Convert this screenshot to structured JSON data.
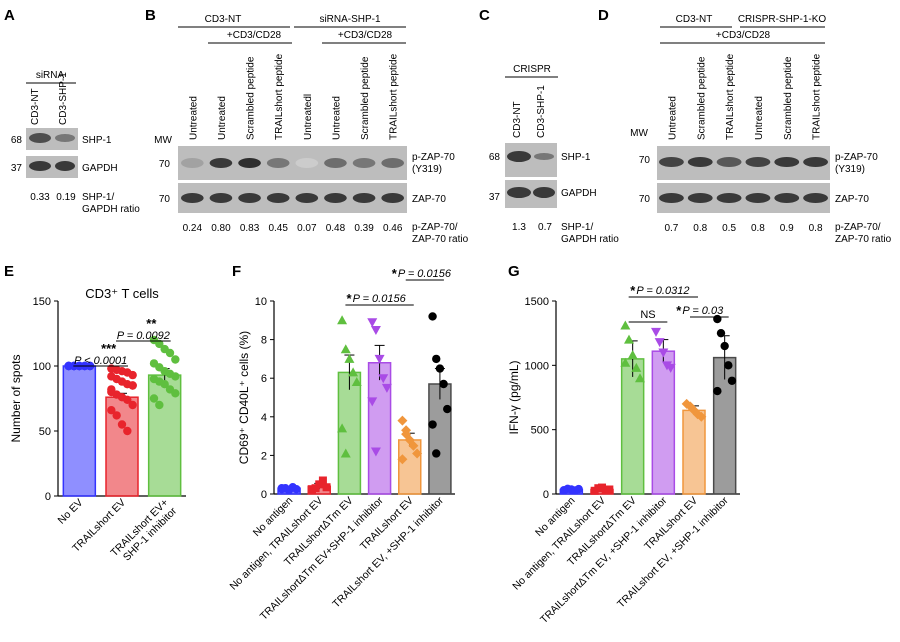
{
  "panels": {
    "A": {
      "letter": "A",
      "group_label": "siRNA",
      "lanes": [
        "CD3-NT",
        "CD3-SHP-1"
      ],
      "mw": [
        "68",
        "37"
      ],
      "bands": [
        "SHP-1",
        "GAPDH"
      ],
      "ratios": [
        "0.33",
        "0.19"
      ],
      "ratio_label": [
        "SHP-1/",
        "GAPDH ratio"
      ]
    },
    "B": {
      "letter": "B",
      "group1": "CD3-NT",
      "group2": "siRNA-SHP-1",
      "stim1": "+CD3/CD28",
      "stim2": "+CD3/CD28",
      "lanes": [
        "Untreated",
        "Untreated",
        "Scrambled peptide",
        "TRAILshort peptide",
        "Untreatedl",
        "Untreated",
        "Scrambled peptide",
        "TRAILshort peptide"
      ],
      "mw_title": "MW",
      "mw": [
        "70",
        "70"
      ],
      "bands": [
        "p-ZAP-70",
        "(Y319)",
        "ZAP-70"
      ],
      "ratios": [
        "0.24",
        "0.80",
        "0.83",
        "0.45",
        "0.07",
        "0.48",
        "0.39",
        "0.46"
      ],
      "ratio_label": [
        "p-ZAP-70/",
        "ZAP-70 ratio"
      ]
    },
    "C": {
      "letter": "C",
      "group_label": "CRISPR",
      "lanes": [
        "CD3-NT",
        "CD3-SHP-1"
      ],
      "mw": [
        "68",
        "37"
      ],
      "bands": [
        "SHP-1",
        "GAPDH"
      ],
      "ratios": [
        "1.3",
        "0.7"
      ],
      "ratio_label": [
        "SHP-1/",
        "GAPDH ratio"
      ]
    },
    "D": {
      "letter": "D",
      "group1": "CD3-NT",
      "group2": "CRISPR-SHP-1-KO",
      "stim": "+CD3/CD28",
      "lanes": [
        "Untreated",
        "Scrambled peptide",
        "TRAILshort peptide",
        "Untreated",
        "Scrambled peptide",
        "TRAILshort peptide"
      ],
      "mw_title": "MW",
      "mw": [
        "70",
        "70"
      ],
      "bands": [
        "p-ZAP-70",
        "(Y319)",
        "ZAP-70"
      ],
      "ratios": [
        "0.7",
        "0.8",
        "0.5",
        "0.8",
        "0.9",
        "0.8"
      ],
      "ratio_label": [
        "p-ZAP-70/",
        "ZAP-70 ratio"
      ]
    }
  },
  "chart_data": [
    {
      "panel": "E",
      "type": "bar",
      "title": "CD3⁺ T cells",
      "ylabel": "Number of spots",
      "ylim": [
        0,
        150
      ],
      "yticks": [
        0,
        50,
        100,
        150
      ],
      "categories": [
        "No EV",
        "TRAILshort EV",
        "TRAILshort EV+ SHP-1 inhibitor"
      ],
      "values": [
        100,
        76,
        93
      ],
      "errors": [
        0,
        3,
        5
      ],
      "colors": [
        "#3333ff",
        "#e8242c",
        "#5fbf3f"
      ],
      "points": [
        [
          100,
          100,
          100,
          100,
          100,
          100,
          100,
          100,
          100,
          100,
          100,
          100,
          100,
          100,
          100,
          100,
          100,
          100
        ],
        [
          98,
          97,
          96,
          95,
          93,
          92,
          90,
          88,
          86,
          85,
          80,
          78,
          76,
          74,
          70,
          66,
          62,
          55,
          50,
          85,
          82
        ],
        [
          120,
          117,
          113,
          110,
          105,
          102,
          99,
          96,
          94,
          92,
          90,
          88,
          86,
          82,
          79,
          75,
          70
        ]
      ],
      "annotations": [
        {
          "stars": "***",
          "text": "P < 0.0001",
          "from": 0,
          "to": 1
        },
        {
          "stars": "**",
          "text": "P = 0.0092",
          "from": 1,
          "to": 2
        }
      ]
    },
    {
      "panel": "F",
      "type": "bar",
      "ylabel": "CD69⁺ CD40L⁺ cells (%)",
      "ylim": [
        0,
        10
      ],
      "yticks": [
        0,
        2,
        4,
        6,
        8,
        10
      ],
      "categories": [
        "No antigen",
        "No antigen, TRAILshort EV",
        "TRAILshortΔTm EV",
        "TRAILshortΔTm EV+SHP-1 inhibitor",
        "TRAILshort EV",
        "TRAILshort EV, +SHP-1 inhibitor"
      ],
      "values": [
        0.3,
        0.4,
        6.3,
        6.8,
        2.8,
        5.7
      ],
      "errors": [
        0.05,
        0.15,
        0.9,
        0.9,
        0.35,
        0.8
      ],
      "colors": [
        "#3333ff",
        "#e8242c",
        "#5fbf3f",
        "#a94be6",
        "#f0963c",
        "#4a4a4a"
      ],
      "points": [
        [
          0.25,
          0.3,
          0.2,
          0.35,
          0.25,
          0.3,
          0.28
        ],
        [
          0.2,
          0.3,
          0.5,
          0.7,
          0.35,
          0.25
        ],
        [
          9.0,
          7.5,
          7.0,
          6.3,
          5.8,
          3.4,
          2.1
        ],
        [
          8.9,
          8.5,
          7.0,
          6.0,
          5.5,
          4.8,
          2.2
        ],
        [
          3.8,
          3.3,
          2.8,
          2.5,
          2.1,
          1.8,
          3.1
        ],
        [
          9.2,
          7.0,
          6.5,
          5.7,
          4.4,
          3.6,
          2.1
        ]
      ],
      "annotations": [
        {
          "stars": "*",
          "text": "P = 0.0156",
          "from": 2,
          "to": 4
        },
        {
          "stars": "*",
          "text": "P = 0.0156",
          "from": 4,
          "to": 5
        }
      ]
    },
    {
      "panel": "G",
      "type": "bar",
      "ylabel": "IFN-γ (pg/mL)",
      "ylim": [
        0,
        1500
      ],
      "yticks": [
        0,
        500,
        1000,
        1500
      ],
      "categories": [
        "No antigen",
        "No antigen, TRAILshort EV",
        "TRAILshortΔTm EV",
        "TRAILshortΔTm EV, +SHP-1 inhibitor",
        "TRAILshort EV",
        "TRAILshort EV, +SHP-1 inhibitor"
      ],
      "values": [
        35,
        35,
        1050,
        1110,
        650,
        1060
      ],
      "errors": [
        5,
        8,
        140,
        90,
        35,
        170
      ],
      "colors": [
        "#3333ff",
        "#e8242c",
        "#5fbf3f",
        "#a94be6",
        "#f0963c",
        "#4a4a4a"
      ],
      "points": [
        [
          30,
          40,
          35,
          28,
          38
        ],
        [
          25,
          45,
          50,
          30,
          35
        ],
        [
          1310,
          1200,
          1080,
          980,
          900,
          1020
        ],
        [
          1260,
          1180,
          1100,
          1000,
          980
        ],
        [
          700,
          680,
          650,
          620,
          600
        ],
        [
          1360,
          1250,
          1150,
          1000,
          880,
          800
        ]
      ],
      "annotations": [
        {
          "stars": "*",
          "text": "P = 0.0312",
          "from": 2,
          "to": 4
        },
        {
          "stars": "",
          "text": "NS",
          "from": 2,
          "to": 3
        },
        {
          "stars": "*",
          "text": "P = 0.03",
          "from": 4,
          "to": 5
        }
      ]
    }
  ]
}
